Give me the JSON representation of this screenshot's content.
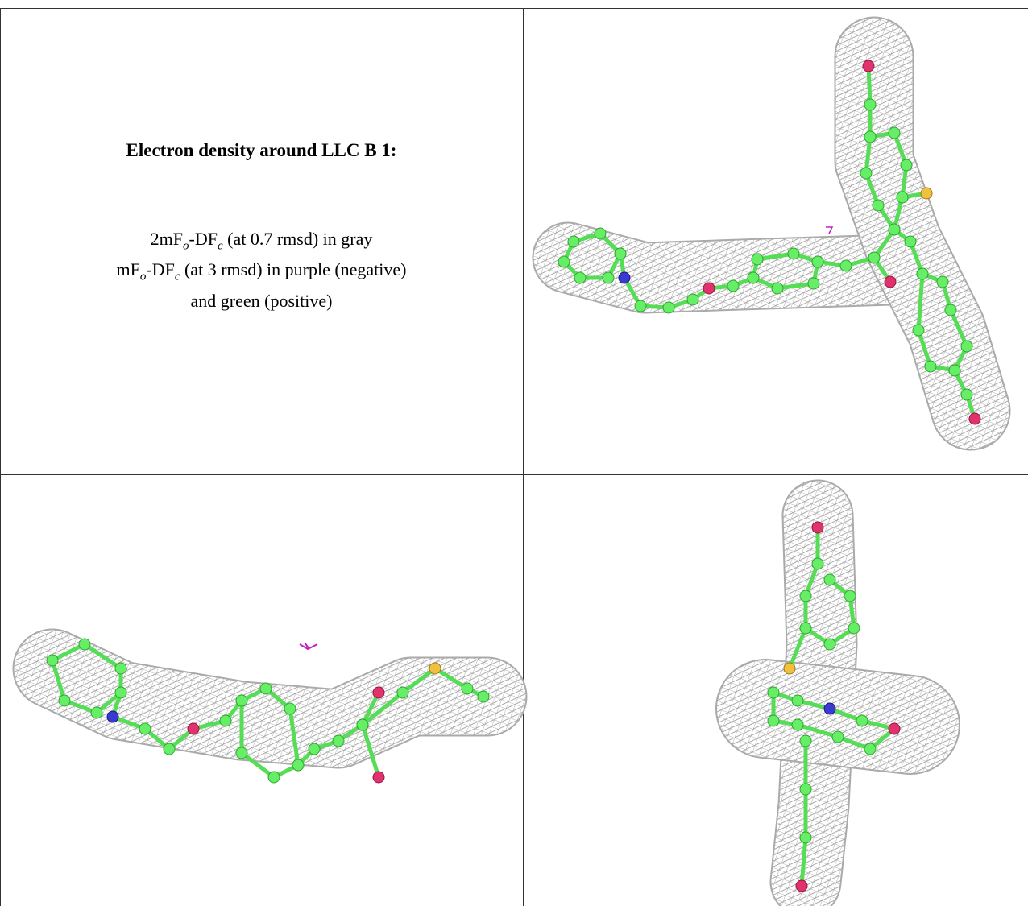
{
  "caption": {
    "title": "Electron density around LLC B 1:",
    "lines": [
      [
        {
          "t": "2mF"
        },
        {
          "sub": "o"
        },
        {
          "t": "-DF"
        },
        {
          "sub": "c"
        },
        {
          "t": " (at 0.7 rmsd) in gray"
        }
      ],
      [
        {
          "t": "mF"
        },
        {
          "sub": "o"
        },
        {
          "t": "-DF"
        },
        {
          "sub": "c"
        },
        {
          "t": " (at 3 rmsd) in purple (negative)"
        }
      ],
      [
        {
          "t": "and green (positive)"
        }
      ]
    ]
  }
}
